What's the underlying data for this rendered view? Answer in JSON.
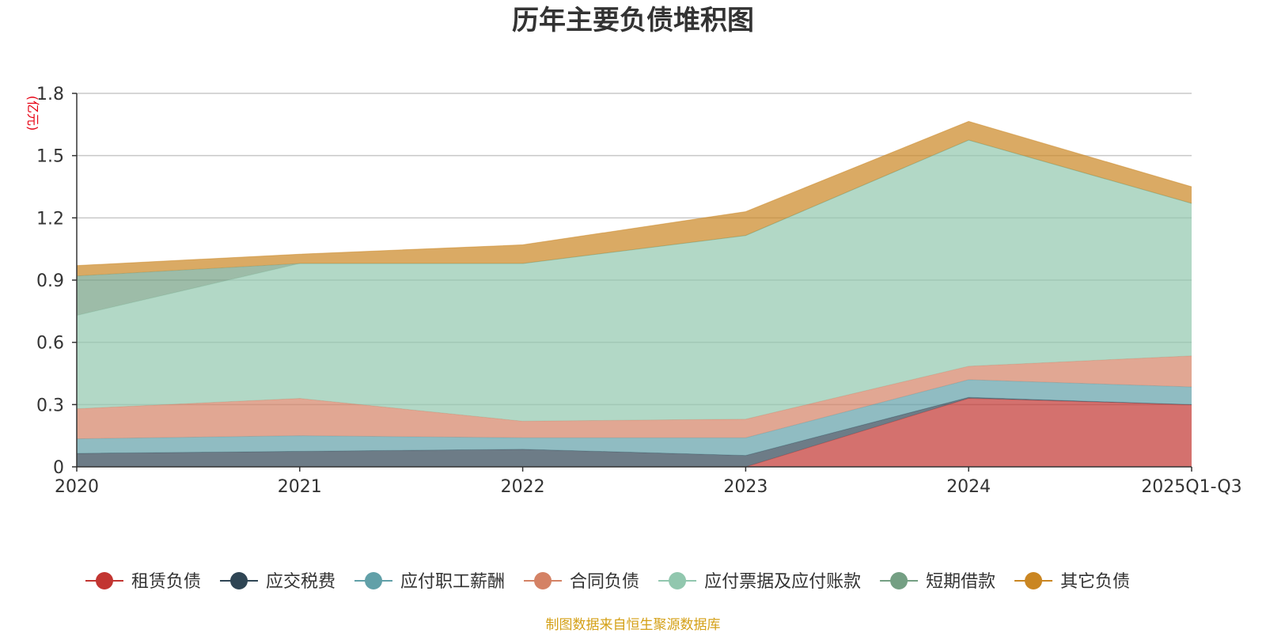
{
  "chart_data": {
    "type": "area",
    "stacked": true,
    "title": "历年主要负债堆积图",
    "unit_label": "(亿元)",
    "categories": [
      "2020",
      "2021",
      "2022",
      "2023",
      "2024",
      "2025Q1-Q3"
    ],
    "ylim": [
      0,
      1.8
    ],
    "yticks": [
      0,
      0.3,
      0.6,
      0.9,
      1.2,
      1.5,
      1.8
    ],
    "ytick_labels": [
      "0",
      "0.3",
      "0.6",
      "0.9",
      "1.2",
      "1.5",
      "1.8"
    ],
    "grid": true,
    "legend_position": "bottom",
    "series": [
      {
        "name": "租赁负债",
        "color": "#c23531",
        "values": [
          0.0,
          0.0,
          0.0,
          0.0,
          0.33,
          0.3
        ]
      },
      {
        "name": "应交税费",
        "color": "#2f4554",
        "values": [
          0.065,
          0.075,
          0.085,
          0.055,
          0.005,
          0.0
        ]
      },
      {
        "name": "应付职工薪酬",
        "color": "#61a0a8",
        "values": [
          0.07,
          0.075,
          0.055,
          0.085,
          0.085,
          0.085
        ]
      },
      {
        "name": "合同负债",
        "color": "#d48265",
        "values": [
          0.145,
          0.18,
          0.08,
          0.09,
          0.065,
          0.15
        ]
      },
      {
        "name": "应付票据及应付账款",
        "color": "#91c7ae",
        "values": [
          0.45,
          0.65,
          0.76,
          0.885,
          1.09,
          0.735
        ]
      },
      {
        "name": "短期借款",
        "color": "#749f83",
        "values": [
          0.19,
          0.0,
          0.0,
          0.0,
          0.0,
          0.0
        ]
      },
      {
        "name": "其它负债",
        "color": "#ca8622",
        "values": [
          0.05,
          0.045,
          0.09,
          0.115,
          0.09,
          0.08
        ]
      }
    ],
    "source_note": "制图数据来自恒生聚源数据库"
  }
}
